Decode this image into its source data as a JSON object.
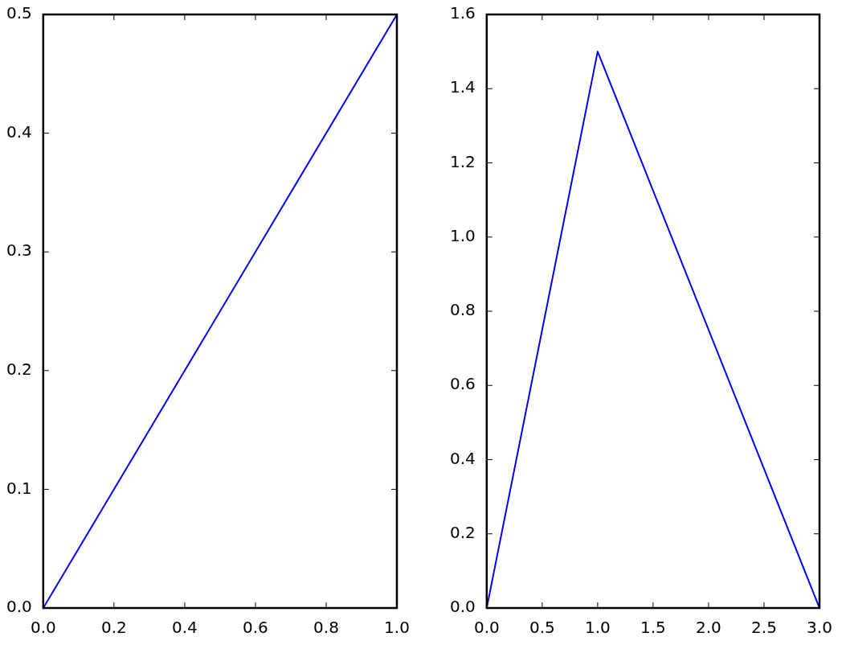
{
  "chart_data": [
    {
      "type": "line",
      "x": [
        0,
        1
      ],
      "series": [
        {
          "color": "#0000ff",
          "values": [
            0,
            0.5
          ]
        }
      ],
      "xlim": [
        0,
        1
      ],
      "ylim": [
        0,
        0.5
      ],
      "xticks": [
        {
          "value": 0,
          "label": "0.0"
        },
        {
          "value": 0.2,
          "label": "0.2"
        },
        {
          "value": 0.4,
          "label": "0.4"
        },
        {
          "value": 0.6,
          "label": "0.6"
        },
        {
          "value": 0.8,
          "label": "0.8"
        },
        {
          "value": 1,
          "label": "1.0"
        }
      ],
      "yticks": [
        {
          "value": 0,
          "label": "0.0"
        },
        {
          "value": 0.1,
          "label": "0.1"
        },
        {
          "value": 0.2,
          "label": "0.2"
        },
        {
          "value": 0.3,
          "label": "0.3"
        },
        {
          "value": 0.4,
          "label": "0.4"
        },
        {
          "value": 0.5,
          "label": "0.5"
        }
      ],
      "marker": "none",
      "legend": false
    },
    {
      "type": "line",
      "x": [
        0,
        1,
        3
      ],
      "series": [
        {
          "color": "#0000ff",
          "values": [
            0,
            1.5,
            0
          ]
        }
      ],
      "xlim": [
        0,
        3
      ],
      "ylim": [
        0,
        1.6
      ],
      "xticks": [
        {
          "value": 0,
          "label": "0.0"
        },
        {
          "value": 0.5,
          "label": "0.5"
        },
        {
          "value": 1,
          "label": "1.0"
        },
        {
          "value": 1.5,
          "label": "1.5"
        },
        {
          "value": 2,
          "label": "2.0"
        },
        {
          "value": 2.5,
          "label": "2.5"
        },
        {
          "value": 3,
          "label": "3.0"
        }
      ],
      "yticks": [
        {
          "value": 0,
          "label": "0.0"
        },
        {
          "value": 0.2,
          "label": "0.2"
        },
        {
          "value": 0.4,
          "label": "0.4"
        },
        {
          "value": 0.6,
          "label": "0.6"
        },
        {
          "value": 0.8,
          "label": "0.8"
        },
        {
          "value": 1,
          "label": "1.0"
        },
        {
          "value": 1.2,
          "label": "1.2"
        },
        {
          "value": 1.4,
          "label": "1.4"
        },
        {
          "value": 1.6,
          "label": "1.6"
        }
      ],
      "marker": "none",
      "legend": false
    }
  ]
}
